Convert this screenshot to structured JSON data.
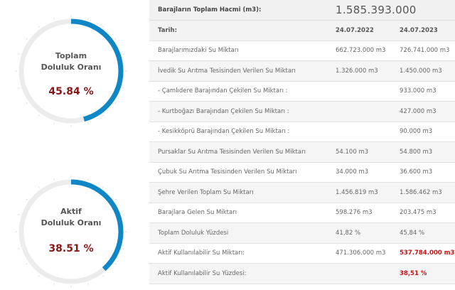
{
  "gauges": [
    {
      "title_line1": "Toplam",
      "title_line2": "Doluluk Oranı",
      "value_text": "45.84 %",
      "value_fraction": 0.4584,
      "color": "#0f86c6",
      "track_color": "#ececec",
      "text_color": "#8b1515"
    },
    {
      "title_line1": "Aktif",
      "title_line2": "Doluluk Oranı",
      "value_text": "38.51 %",
      "value_fraction": 0.3851,
      "color": "#0f86c6",
      "track_color": "#ececec",
      "text_color": "#8b1515"
    }
  ],
  "table": {
    "total_label": "Barajların Toplam Hacmi (m3):",
    "total_value": "1.585.393.000",
    "date_label": "Tarih:",
    "date1": "24.07.2022",
    "date2": "24.07.2023",
    "rows": [
      {
        "label": "Barajlarımızdaki Su Miktarı",
        "v1": "662.723.000 m3",
        "v2": "726.741.000 m3"
      },
      {
        "label": "İvedik Su Arıtma Tesisinden Verilen Su Miktarı",
        "v1": "1.326.000 m3",
        "v2": "1.450.000 m3"
      },
      {
        "label": "- Çamlıdere Barajından Çekilen Su Miktarı :",
        "v1": "",
        "v2": "933.000 m3"
      },
      {
        "label": "- Kurtboğazı Barajından Çekilen Su Miktarı :",
        "v1": "",
        "v2": "427.000 m3"
      },
      {
        "label": "- Kesikköprü Barajından Çekilen Su Miktarı :",
        "v1": "",
        "v2": "90.000 m3"
      },
      {
        "label": "Pursaklar Su Arıtma Tesisinden Verilen Su Miktarı",
        "v1": "54.100 m3",
        "v2": "54.800 m3"
      },
      {
        "label": "Çubuk Su Arıtma Tesisinden Verilen Su Miktarı",
        "v1": "34.000 m3",
        "v2": "36.600 m3"
      },
      {
        "label": "Şehre Verilen Toplam Su Miktarı",
        "v1": "1.456.819 m3",
        "v2": "1.586.462 m3"
      },
      {
        "label": "Barajlara Gelen Su Miktarı",
        "v1": "598.276 m3",
        "v2": "203.475 m3"
      },
      {
        "label": "Toplam Doluluk Yüzdesi",
        "v1": "41,82 %",
        "v2": "45,84 %"
      },
      {
        "label": "Aktif Kullanılabilir Su Miktarı:",
        "v1": "471.306.000 m3",
        "v2": "537.784.000 m3",
        "v2_highlight": true
      },
      {
        "label": "Aktif Kullanılabilir Su Yüzdesi:",
        "v1": "",
        "v2": "38,51 %",
        "v2_highlight": true
      }
    ]
  }
}
